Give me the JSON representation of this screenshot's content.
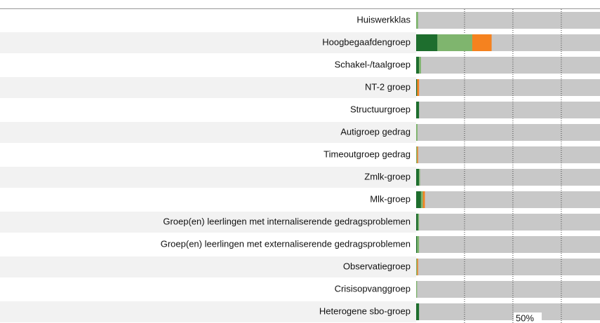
{
  "chart_data": {
    "type": "stacked-barh",
    "categories": [
      "Huiswerkklas",
      "Hoogbegaafdengroep",
      "Schakel-/taalgroep",
      "NT-2 groep",
      "Structuurgroep",
      "Autigroep gedrag",
      "Timeoutgroep gedrag",
      "Zmlk-groep",
      "Mlk-groep",
      "Groep(en) leerlingen met internaliserende gedragsproblemen",
      "Groep(en) leerlingen met externaliserende gedragsproblemen",
      "Observatiegroep",
      "Crisisopvanggroep",
      "Heterogene sbo-groep"
    ],
    "series": [
      {
        "color": "#1e6e2e",
        "values": [
          0,
          11,
          1.5,
          0.5,
          1.5,
          0,
          0,
          1.5,
          2.5,
          1,
          0.5,
          0,
          0,
          1.5
        ]
      },
      {
        "color": "#7fb56e",
        "values": [
          1,
          18,
          1,
          0,
          0,
          0.7,
          0.5,
          0.5,
          1,
          0.5,
          1,
          0.5,
          0.5,
          0
        ]
      },
      {
        "color": "#f5821f",
        "values": [
          0,
          10,
          0,
          1,
          0,
          0,
          0.5,
          0,
          1,
          0,
          0,
          0.5,
          0,
          0
        ]
      }
    ],
    "xlim": [
      0,
      95
    ],
    "xticks": [
      {
        "value": 50,
        "label": "50%"
      }
    ],
    "grid_lines": [
      25,
      50,
      75
    ],
    "track_color": "#c8c8c8"
  }
}
